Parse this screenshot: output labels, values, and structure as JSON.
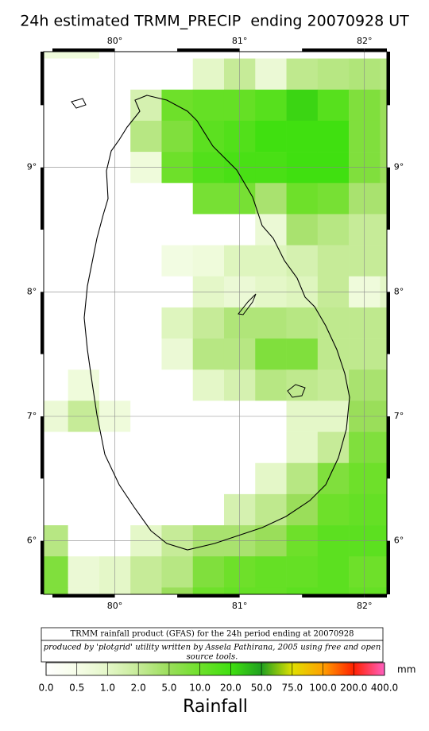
{
  "chart_data": {
    "type": "heatmap",
    "title": "24h estimated TRMM_PRECIP  ending 20070928 UT",
    "x": [
      79.5,
      79.75,
      80.0,
      80.25,
      80.5,
      80.75,
      81.0,
      81.25,
      81.5,
      81.75,
      82.0,
      82.25
    ],
    "y": [
      10.0,
      9.75,
      9.5,
      9.25,
      9.0,
      8.75,
      8.5,
      8.25,
      8.0,
      7.75,
      7.5,
      7.25,
      7.0,
      6.75,
      6.5,
      6.25,
      6.0,
      5.75,
      5.5
    ],
    "values": [
      [
        0.7,
        0.7,
        0,
        0,
        0,
        0,
        0,
        0,
        0,
        0,
        0,
        0
      ],
      [
        0,
        0,
        0,
        0,
        0,
        1,
        2,
        0.8,
        2.5,
        3,
        3.5,
        3
      ],
      [
        0,
        0,
        0,
        1.5,
        10,
        12,
        12,
        15,
        25,
        15,
        8,
        5
      ],
      [
        0,
        0,
        0,
        3,
        8,
        14,
        16,
        20,
        20,
        20,
        8,
        5
      ],
      [
        0,
        0,
        0,
        0.7,
        10,
        16,
        18,
        18,
        20,
        20,
        8,
        5
      ],
      [
        0,
        0,
        0,
        0,
        0,
        9,
        9,
        4,
        10,
        9,
        4,
        4
      ],
      [
        0,
        0,
        0,
        0,
        0,
        0,
        0,
        0.8,
        4,
        3,
        2,
        2
      ],
      [
        0,
        0,
        0,
        0,
        0.6,
        0.7,
        1.2,
        1.2,
        1.5,
        2,
        2,
        2
      ],
      [
        0,
        0,
        0,
        0,
        0,
        1,
        0.8,
        1,
        1.2,
        2,
        0.7,
        1
      ],
      [
        0,
        0,
        0,
        0,
        1.2,
        2,
        3.5,
        3.5,
        3,
        2.5,
        2.5,
        2.5
      ],
      [
        0,
        0,
        0,
        0,
        0.8,
        3,
        3,
        8,
        8,
        2.5,
        2.5,
        2.5
      ],
      [
        0,
        0.7,
        0,
        0,
        0,
        1,
        1.5,
        3,
        2.5,
        2,
        4,
        4
      ],
      [
        0.8,
        2,
        0.7,
        0,
        0,
        0,
        0,
        0,
        1,
        1,
        5,
        5
      ],
      [
        0,
        0,
        0,
        0,
        0,
        0,
        0,
        0,
        1,
        2,
        8,
        8
      ],
      [
        0,
        0,
        0,
        0,
        0,
        0,
        0,
        1,
        3,
        8,
        10,
        10
      ],
      [
        0,
        0,
        0,
        0,
        0,
        0,
        1.5,
        2.5,
        5,
        10,
        12,
        12
      ],
      [
        3,
        0,
        0,
        1,
        2,
        4,
        4,
        5,
        10,
        14,
        14,
        14
      ],
      [
        8,
        0.8,
        1,
        2,
        3,
        8,
        10,
        12,
        12,
        14,
        10,
        10
      ],
      [
        8,
        0.8,
        1,
        2,
        5,
        10,
        12,
        12,
        14,
        14,
        12,
        12
      ]
    ],
    "xlim": [
      79.43,
      82.18
    ],
    "ylim": [
      5.57,
      9.93
    ],
    "xticks": [
      {
        "value": 80,
        "label": "80°"
      },
      {
        "value": 81,
        "label": "81°"
      },
      {
        "value": 82,
        "label": "82°"
      }
    ],
    "yticks": [
      {
        "value": 6,
        "label": "6°"
      },
      {
        "value": 7,
        "label": "7°"
      },
      {
        "value": 8,
        "label": "8°"
      },
      {
        "value": 9,
        "label": "9°"
      }
    ],
    "grid": true,
    "notes": [
      "TRMM rainfall product (GFAS) for the 24h period ending at 20070928",
      "produced by 'plotgrid' utility written by Assela Pathirana, 2005 using free and open",
      "source tools."
    ],
    "colorbar": {
      "levels": [
        {
          "value": 0,
          "label": "0.0"
        },
        {
          "value": 0.5,
          "label": "0.5"
        },
        {
          "value": 1,
          "label": "1.0"
        },
        {
          "value": 2,
          "label": "2.0"
        },
        {
          "value": 5,
          "label": "5.0"
        },
        {
          "value": 10,
          "label": "10.0"
        },
        {
          "value": 20,
          "label": "20.0"
        },
        {
          "value": 50,
          "label": "50.0"
        },
        {
          "value": 75,
          "label": "75.0"
        },
        {
          "value": 100,
          "label": "100.0"
        },
        {
          "value": 200,
          "label": "200.0"
        },
        {
          "value": 400,
          "label": "400.0"
        }
      ],
      "colors": [
        "#ffffff",
        "#f6fde8",
        "#e4f7c8",
        "#c6eb98",
        "#9ade5a",
        "#6ee02a",
        "#40e010",
        "#20a020",
        "#e0e000",
        "#ffa000",
        "#ff2000",
        "#ff60c0"
      ],
      "unit": "mm",
      "label": "Rainfall"
    }
  }
}
